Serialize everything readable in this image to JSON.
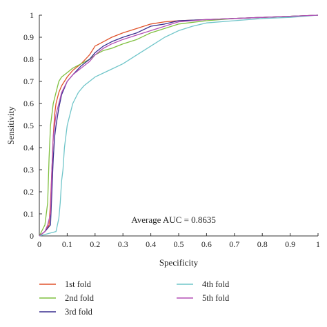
{
  "chart_data": {
    "type": "line",
    "title": "",
    "xlabel": "Specificity",
    "ylabel": "Sensitivity",
    "xlim": [
      0,
      1
    ],
    "ylim": [
      0,
      1
    ],
    "xticks": [
      "0",
      "0.1",
      "0.2",
      "0.3",
      "0.4",
      "0.5",
      "0.6",
      "0.7",
      "0.8",
      "0.9",
      "1"
    ],
    "yticks": [
      "0",
      "0.1",
      "0.2",
      "0.3",
      "0.4",
      "0.5",
      "0.6",
      "0.7",
      "0.8",
      "0.9",
      "1"
    ],
    "grid": false,
    "legend_position": "bottom",
    "annotation": "Average AUC = 0.8635",
    "series": [
      {
        "name": "1st fold",
        "color": "#e0522b",
        "x": [
          0,
          0.02,
          0.035,
          0.04,
          0.045,
          0.05,
          0.055,
          0.06,
          0.07,
          0.08,
          0.1,
          0.12,
          0.15,
          0.18,
          0.2,
          0.23,
          0.26,
          0.3,
          0.35,
          0.4,
          0.45,
          0.5,
          0.6,
          0.7,
          0.8,
          0.9,
          1
        ],
        "y": [
          0,
          0.02,
          0.05,
          0.15,
          0.3,
          0.45,
          0.55,
          0.6,
          0.65,
          0.68,
          0.72,
          0.75,
          0.78,
          0.82,
          0.86,
          0.88,
          0.9,
          0.92,
          0.94,
          0.96,
          0.97,
          0.975,
          0.98,
          0.985,
          0.99,
          0.995,
          1.0
        ]
      },
      {
        "name": "2nd fold",
        "color": "#7fbf3f",
        "x": [
          0,
          0.02,
          0.03,
          0.035,
          0.04,
          0.045,
          0.05,
          0.06,
          0.07,
          0.08,
          0.1,
          0.12,
          0.15,
          0.18,
          0.2,
          0.23,
          0.26,
          0.3,
          0.35,
          0.4,
          0.45,
          0.5,
          0.6,
          0.7,
          0.8,
          0.9,
          1
        ],
        "y": [
          0,
          0.05,
          0.15,
          0.35,
          0.5,
          0.55,
          0.6,
          0.65,
          0.7,
          0.72,
          0.74,
          0.76,
          0.78,
          0.8,
          0.82,
          0.84,
          0.85,
          0.87,
          0.89,
          0.92,
          0.94,
          0.96,
          0.975,
          0.985,
          0.99,
          0.995,
          1.0
        ]
      },
      {
        "name": "3rd fold",
        "color": "#3a2f8f",
        "x": [
          0,
          0.02,
          0.04,
          0.045,
          0.05,
          0.055,
          0.06,
          0.07,
          0.08,
          0.1,
          0.12,
          0.15,
          0.18,
          0.2,
          0.23,
          0.26,
          0.3,
          0.35,
          0.4,
          0.45,
          0.5,
          0.6,
          0.7,
          0.8,
          0.9,
          1
        ],
        "y": [
          0,
          0.02,
          0.05,
          0.2,
          0.35,
          0.45,
          0.5,
          0.58,
          0.64,
          0.7,
          0.73,
          0.77,
          0.8,
          0.83,
          0.86,
          0.88,
          0.9,
          0.92,
          0.95,
          0.96,
          0.975,
          0.98,
          0.985,
          0.99,
          0.995,
          1.0
        ]
      },
      {
        "name": "4th fold",
        "color": "#6fc5c9",
        "x": [
          0,
          0.06,
          0.07,
          0.075,
          0.08,
          0.085,
          0.09,
          0.1,
          0.11,
          0.12,
          0.14,
          0.16,
          0.18,
          0.2,
          0.25,
          0.3,
          0.35,
          0.4,
          0.45,
          0.5,
          0.55,
          0.6,
          0.7,
          0.8,
          0.9,
          1
        ],
        "y": [
          0,
          0.02,
          0.08,
          0.15,
          0.25,
          0.3,
          0.4,
          0.5,
          0.55,
          0.6,
          0.65,
          0.68,
          0.7,
          0.72,
          0.75,
          0.78,
          0.82,
          0.86,
          0.9,
          0.93,
          0.95,
          0.965,
          0.975,
          0.985,
          0.99,
          1.0
        ]
      },
      {
        "name": "5th fold",
        "color": "#b34fb5",
        "x": [
          0,
          0.02,
          0.03,
          0.04,
          0.045,
          0.05,
          0.06,
          0.07,
          0.08,
          0.1,
          0.12,
          0.15,
          0.18,
          0.2,
          0.23,
          0.26,
          0.3,
          0.35,
          0.4,
          0.45,
          0.5,
          0.6,
          0.7,
          0.8,
          0.9,
          1
        ],
        "y": [
          0,
          0.02,
          0.05,
          0.1,
          0.3,
          0.45,
          0.55,
          0.6,
          0.65,
          0.7,
          0.73,
          0.76,
          0.79,
          0.82,
          0.85,
          0.87,
          0.89,
          0.91,
          0.93,
          0.95,
          0.97,
          0.98,
          0.985,
          0.99,
          0.995,
          1.0
        ]
      }
    ]
  }
}
